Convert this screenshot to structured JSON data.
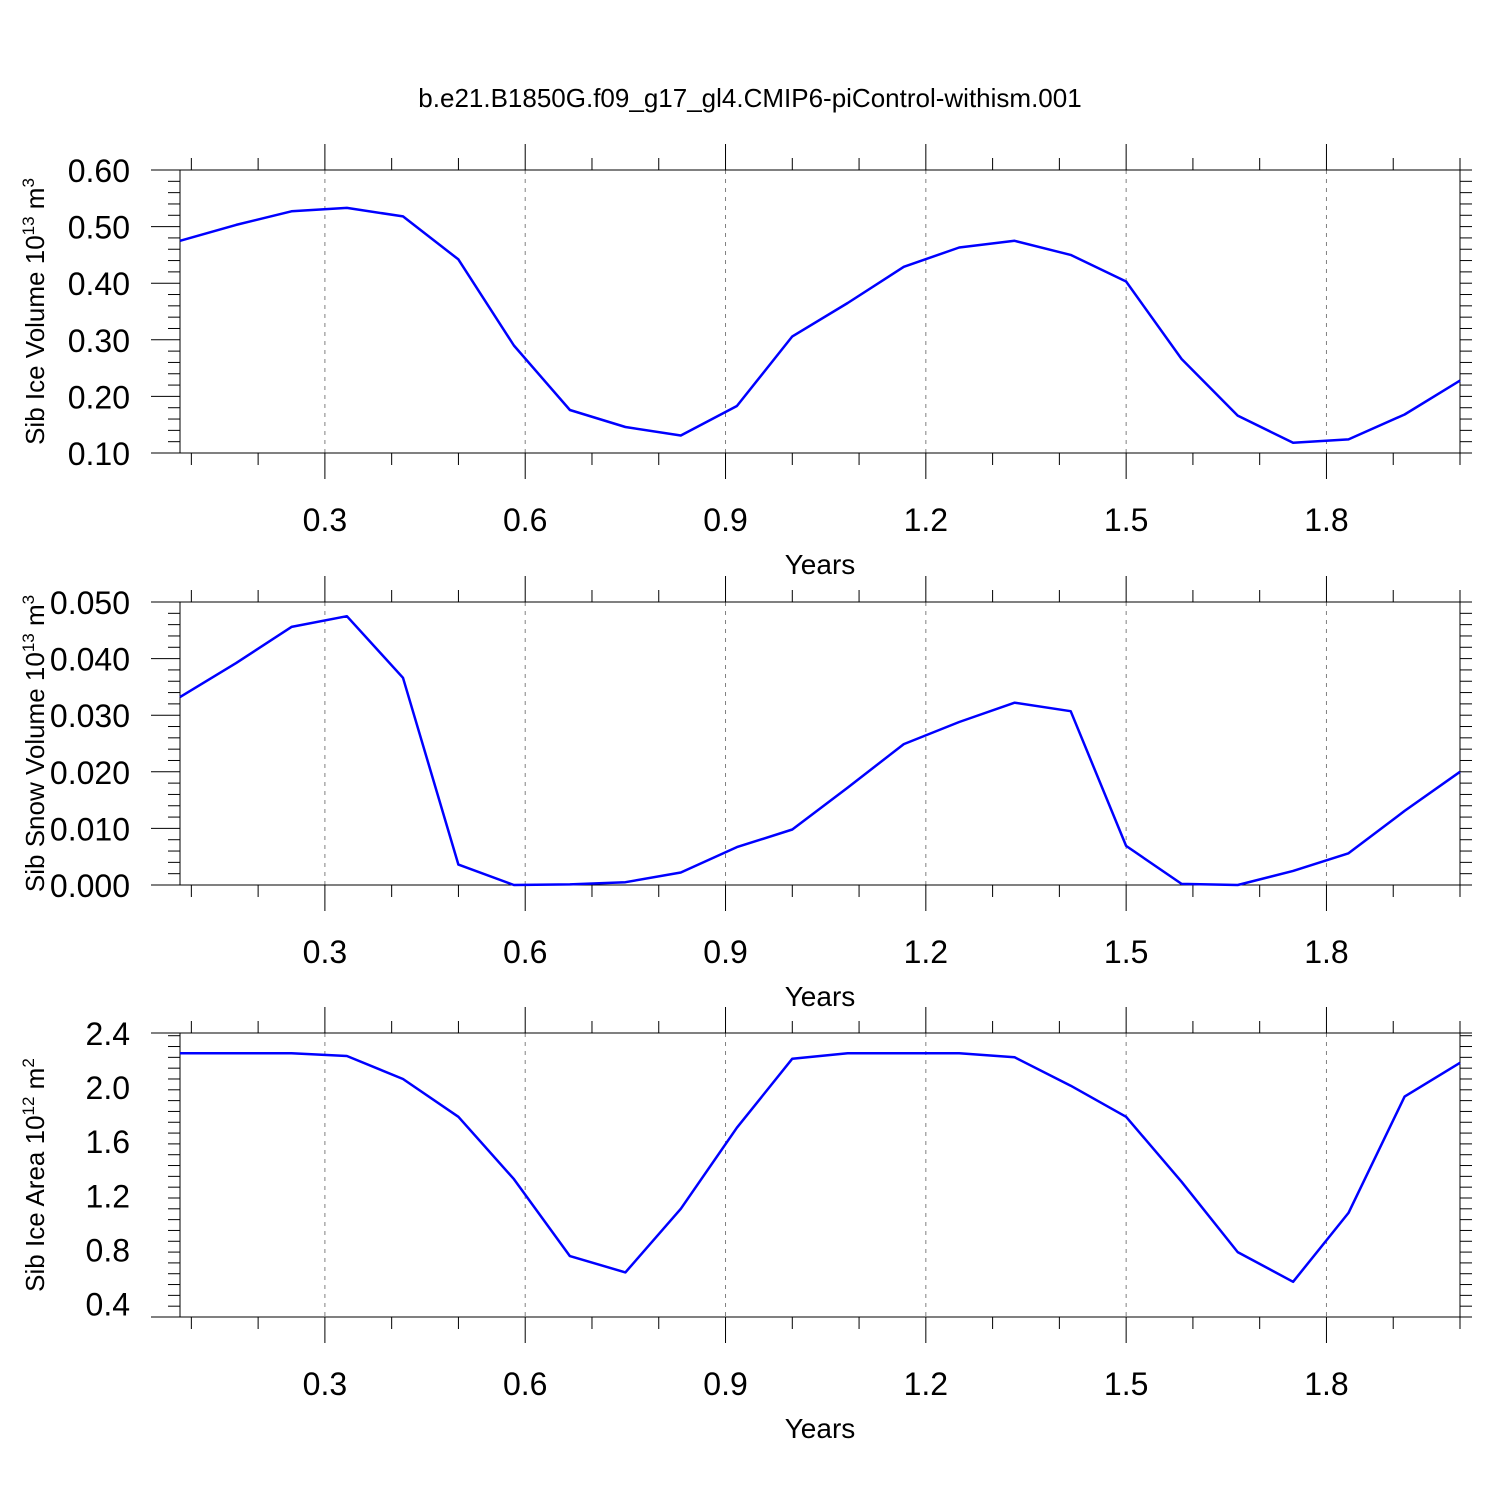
{
  "title": "b.e21.B1850G.f09_g17_gl4.CMIP6-piControl-withism.001",
  "colors": {
    "line": "#0000ff",
    "axis": "#000000",
    "grid": "#808080"
  },
  "chart_data": [
    {
      "type": "line",
      "xlabel": "Years",
      "ylabel": "Sib Ice Volume 10",
      "ylabel_exp1": "13",
      "ylabel_unit": " m",
      "ylabel_exp2": "3",
      "xlim": [
        0.083,
        2.0
      ],
      "ylim": [
        0.1,
        0.6
      ],
      "x_ticks": [
        0.3,
        0.6,
        0.9,
        1.2,
        1.5,
        1.8
      ],
      "x_tick_labels": [
        "0.3",
        "0.6",
        "0.9",
        "1.2",
        "1.5",
        "1.8"
      ],
      "y_ticks": [
        0.1,
        0.2,
        0.3,
        0.4,
        0.5,
        0.6
      ],
      "y_tick_labels": [
        "0.10",
        "0.20",
        "0.30",
        "0.40",
        "0.50",
        "0.60"
      ],
      "grid": "vertical dashed at major x ticks",
      "x": [
        0.083,
        0.167,
        0.25,
        0.333,
        0.417,
        0.5,
        0.583,
        0.667,
        0.75,
        0.833,
        0.917,
        1.0,
        1.083,
        1.167,
        1.25,
        1.333,
        1.417,
        1.5,
        1.583,
        1.667,
        1.75,
        1.833,
        1.917,
        2.0
      ],
      "y": [
        0.475,
        0.503,
        0.527,
        0.533,
        0.518,
        0.442,
        0.29,
        0.176,
        0.146,
        0.131,
        0.183,
        0.306,
        0.365,
        0.429,
        0.463,
        0.475,
        0.45,
        0.403,
        0.266,
        0.166,
        0.118,
        0.124,
        0.168,
        0.228
      ]
    },
    {
      "type": "line",
      "xlabel": "Years",
      "ylabel": "Sib Snow Volume 10",
      "ylabel_exp1": "13",
      "ylabel_unit": " m",
      "ylabel_exp2": "3",
      "xlim": [
        0.083,
        2.0
      ],
      "ylim": [
        0.0,
        0.05
      ],
      "x_ticks": [
        0.3,
        0.6,
        0.9,
        1.2,
        1.5,
        1.8
      ],
      "x_tick_labels": [
        "0.3",
        "0.6",
        "0.9",
        "1.2",
        "1.5",
        "1.8"
      ],
      "y_ticks": [
        0.0,
        0.01,
        0.02,
        0.03,
        0.04,
        0.05
      ],
      "y_tick_labels": [
        "0.000",
        "0.010",
        "0.020",
        "0.030",
        "0.040",
        "0.050"
      ],
      "grid": "vertical dashed at major x ticks",
      "x": [
        0.083,
        0.167,
        0.25,
        0.333,
        0.417,
        0.5,
        0.583,
        0.667,
        0.75,
        0.833,
        0.917,
        1.0,
        1.083,
        1.167,
        1.25,
        1.333,
        1.417,
        1.5,
        1.583,
        1.667,
        1.75,
        1.833,
        1.917,
        2.0
      ],
      "y": [
        0.0332,
        0.0392,
        0.0456,
        0.0475,
        0.0366,
        0.0036,
        0.0,
        0.0001,
        0.0005,
        0.0022,
        0.0067,
        0.0098,
        0.0172,
        0.0249,
        0.0288,
        0.0322,
        0.0307,
        0.0069,
        0.0002,
        0.0,
        0.0025,
        0.0056,
        0.0131,
        0.02
      ]
    },
    {
      "type": "line",
      "xlabel": "Years",
      "ylabel": "Sib Ice Area 10",
      "ylabel_exp1": "12",
      "ylabel_unit": " m",
      "ylabel_exp2": "2",
      "xlim": [
        0.083,
        2.0
      ],
      "ylim": [
        0.3,
        2.4
      ],
      "x_ticks": [
        0.3,
        0.6,
        0.9,
        1.2,
        1.5,
        1.8
      ],
      "x_tick_labels": [
        "0.3",
        "0.6",
        "0.9",
        "1.2",
        "1.5",
        "1.8"
      ],
      "y_ticks": [
        0.4,
        0.8,
        1.2,
        1.6,
        2.0,
        2.4
      ],
      "y_tick_labels": [
        "0.4",
        "0.8",
        "1.2",
        "1.6",
        "2.0",
        "2.4"
      ],
      "grid": "vertical dashed at major x ticks",
      "x": [
        0.083,
        0.167,
        0.25,
        0.333,
        0.417,
        0.5,
        0.583,
        0.667,
        0.75,
        0.833,
        0.917,
        1.0,
        1.083,
        1.167,
        1.25,
        1.333,
        1.417,
        1.5,
        1.583,
        1.667,
        1.75,
        1.833,
        1.917,
        2.0
      ],
      "y": [
        2.25,
        2.25,
        2.25,
        2.23,
        2.06,
        1.78,
        1.32,
        0.75,
        0.63,
        1.1,
        1.7,
        2.21,
        2.25,
        2.25,
        2.25,
        2.22,
        2.01,
        1.78,
        1.3,
        0.78,
        0.56,
        1.07,
        1.93,
        2.18
      ]
    }
  ]
}
